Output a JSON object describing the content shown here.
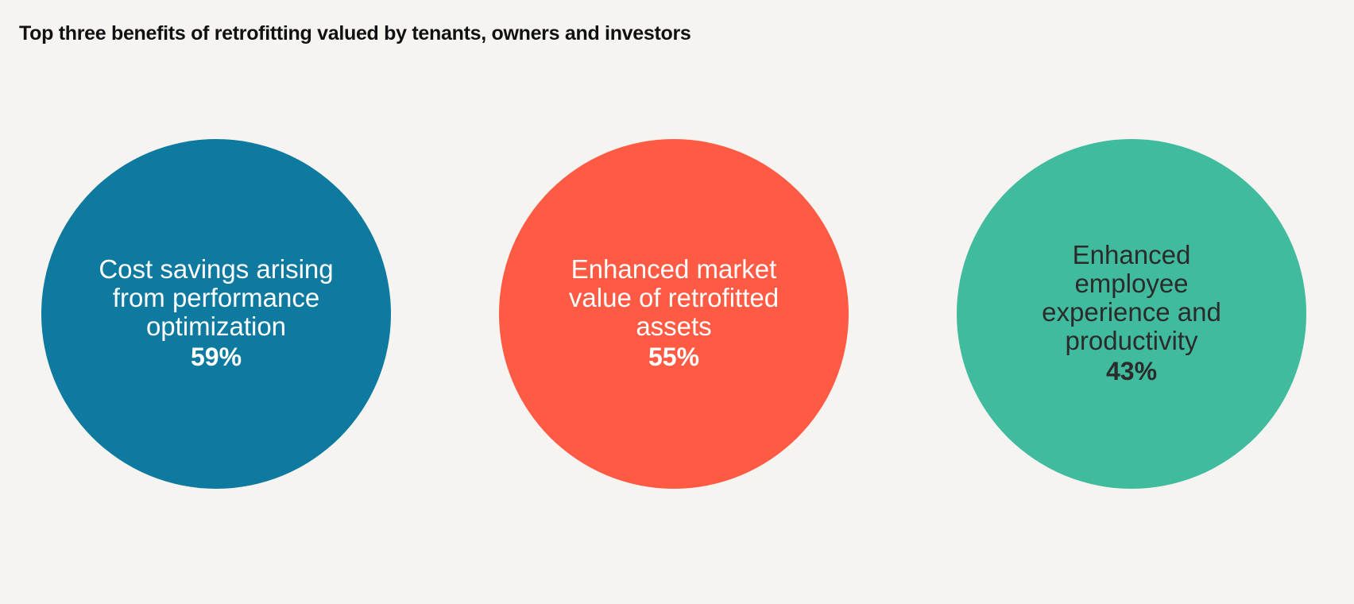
{
  "header": {
    "title": "Top three benefits of retrofitting valued by tenants, owners and investors"
  },
  "items": [
    {
      "label": "Cost savings arising from performance optimization",
      "value": "59%"
    },
    {
      "label": "Enhanced market value of retrofitted assets",
      "value": "55%"
    },
    {
      "label": "Enhanced employee experience and productivity",
      "value": "43%"
    }
  ]
}
